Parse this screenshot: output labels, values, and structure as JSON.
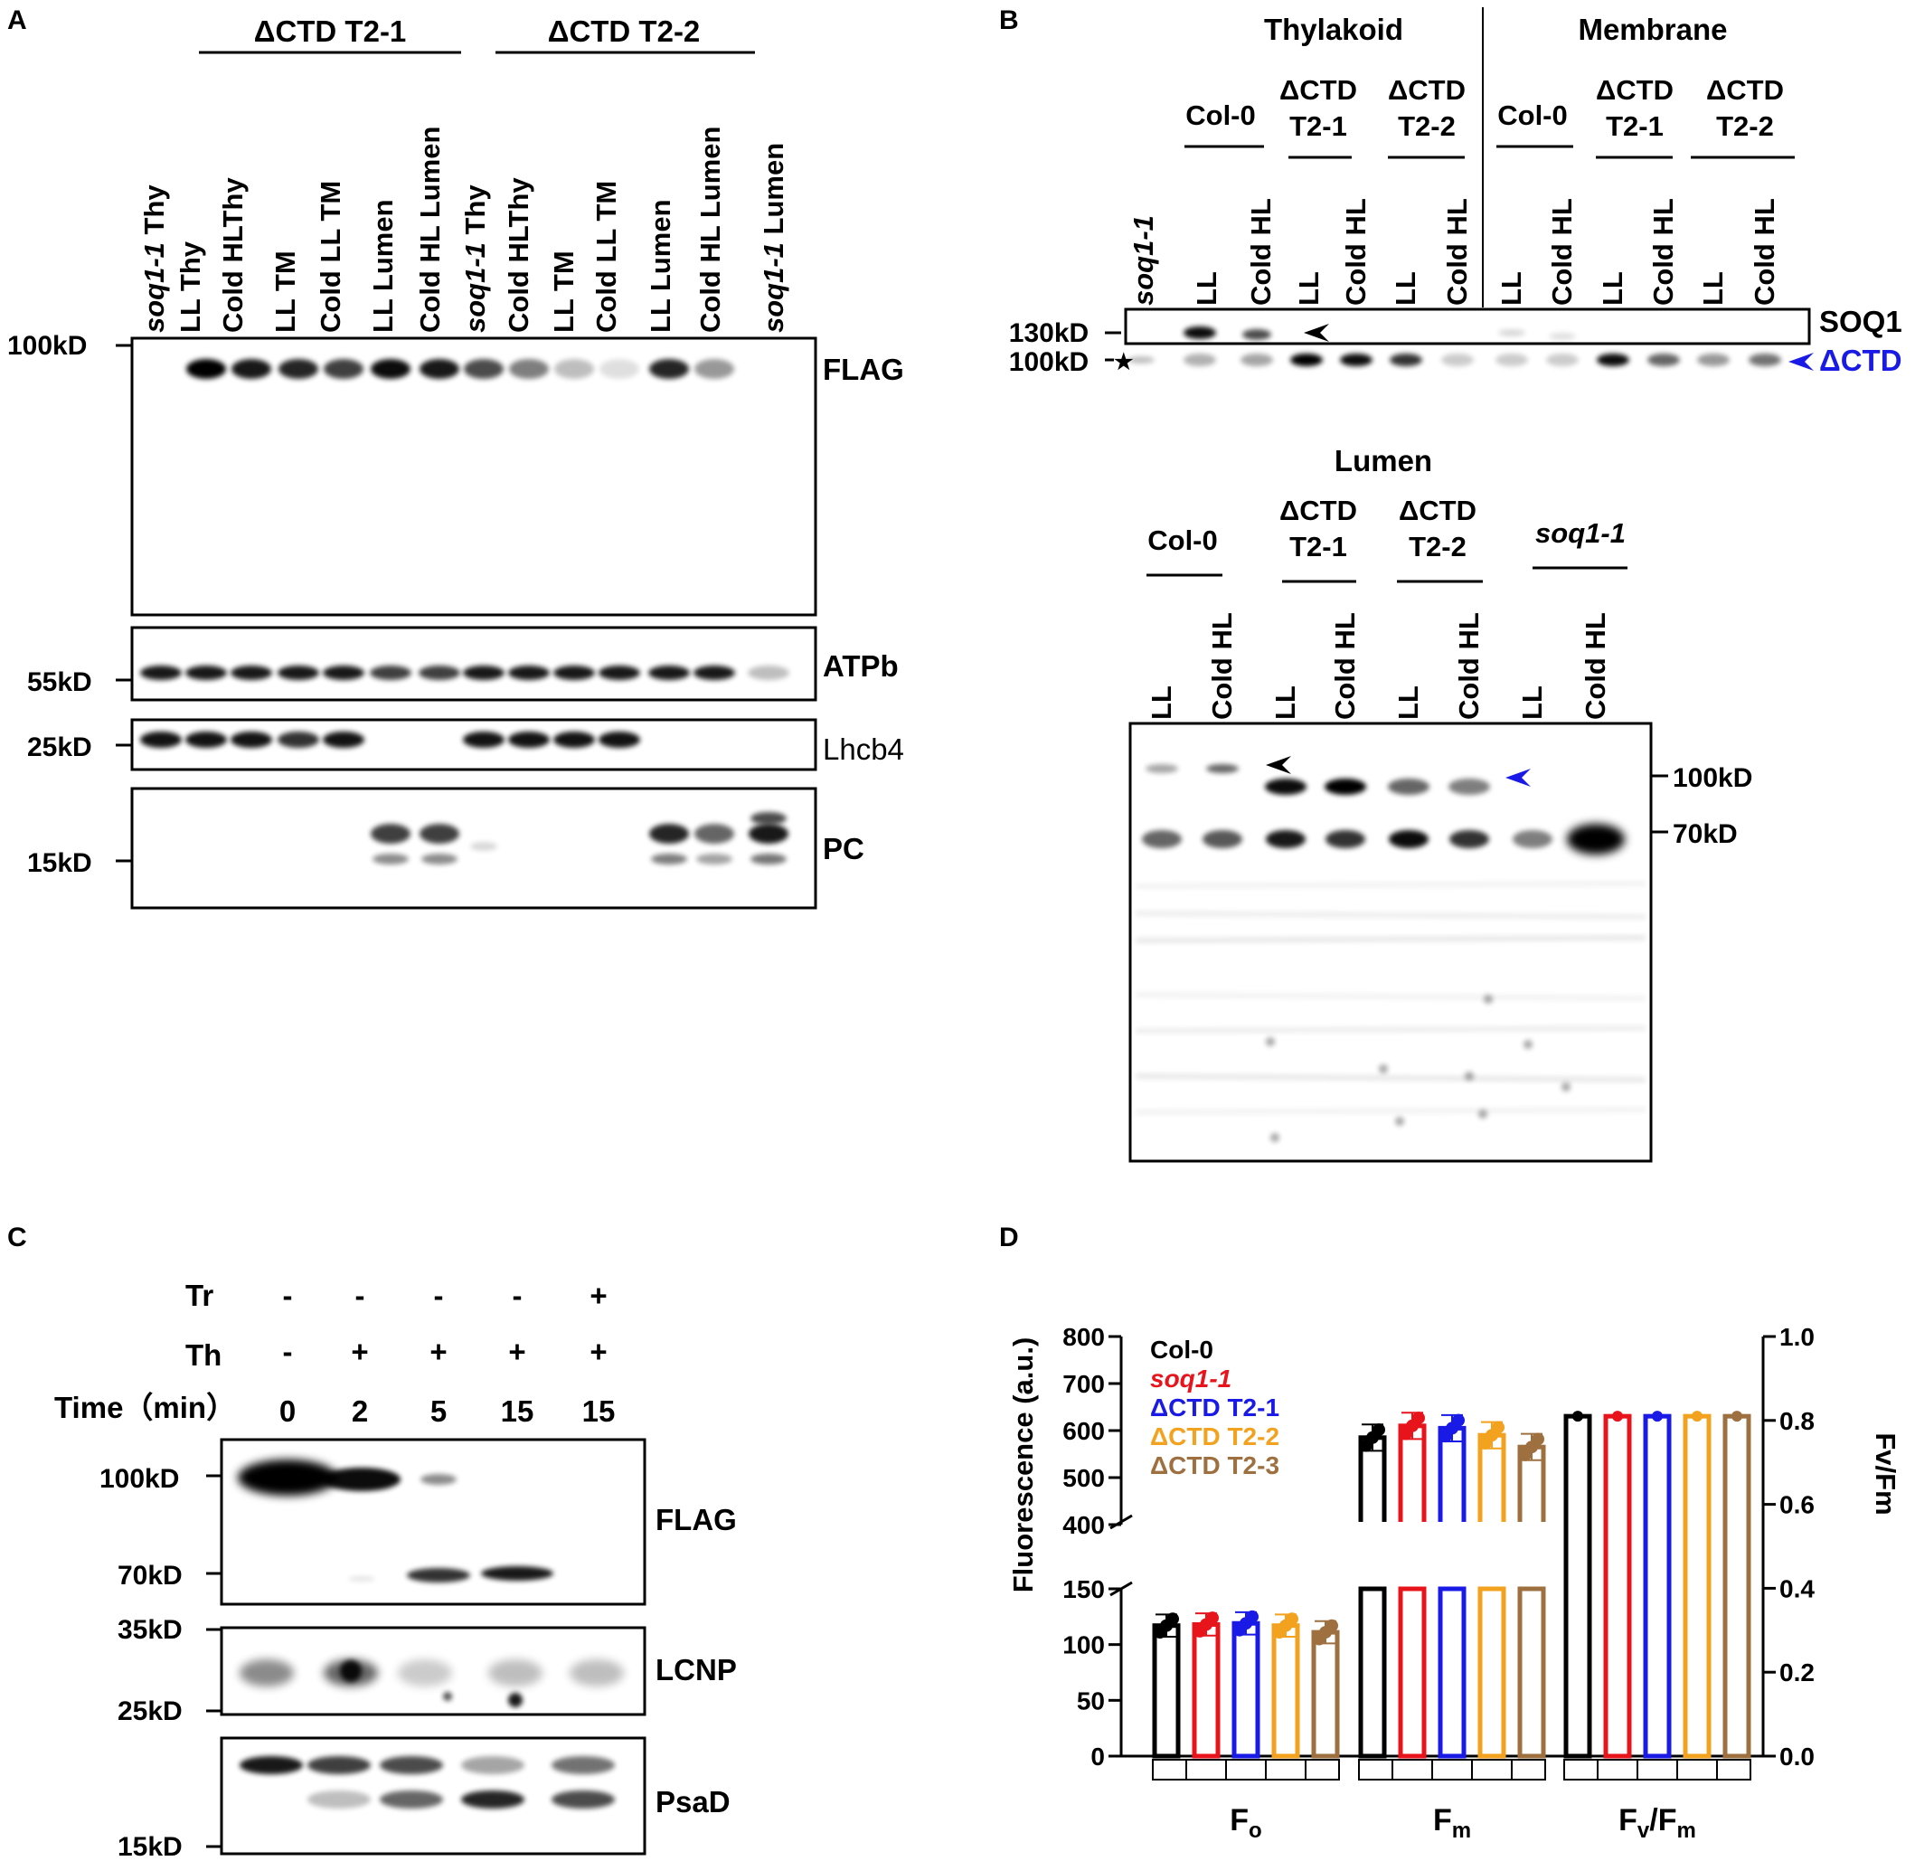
{
  "panel_labels": {
    "a": "A",
    "b": "B",
    "c": "C",
    "d": "D"
  },
  "panel_a": {
    "groups": [
      "ΔCTD T2-1",
      "ΔCTD T2-2"
    ],
    "lanes": [
      {
        "pre": "soq1-1",
        "post": " Thy"
      },
      {
        "pre": "",
        "post": "LL Thy"
      },
      {
        "pre": "",
        "post": "Cold HLThy"
      },
      {
        "pre": "",
        "post": "LL TM"
      },
      {
        "pre": "",
        "post": "Cold LL TM"
      },
      {
        "pre": "",
        "post": "LL Lumen"
      },
      {
        "pre": "",
        "post": "Cold HL Lumen"
      },
      {
        "pre": "soq1-1",
        "post": " Thy"
      },
      {
        "pre": "",
        "post": "Cold HLThy"
      },
      {
        "pre": "",
        "post": "LL TM"
      },
      {
        "pre": "",
        "post": "Cold LL TM"
      },
      {
        "pre": "",
        "post": "LL Lumen"
      },
      {
        "pre": "",
        "post": "Cold HL Lumen"
      },
      {
        "pre": "soq1-1",
        "post": " Lumen"
      }
    ],
    "blots": [
      "FLAG",
      "ATPb",
      "Lhcb4",
      "PC"
    ],
    "markers": [
      "100kD",
      "55kD",
      "25kD",
      "15kD"
    ]
  },
  "panel_b": {
    "top_headers": [
      "Thylakoid",
      "Membrane"
    ],
    "top_groups": [
      "Col-0",
      "ΔCTD",
      "T2-1",
      "ΔCTD",
      "T2-2",
      "Col-0",
      "ΔCTD",
      "T2-1",
      "ΔCTD",
      "T2-2"
    ],
    "top_lanes": [
      "soq1-1",
      "LL",
      "Cold HL",
      "LL",
      "Cold HL",
      "LL",
      "Cold HL",
      "LL",
      "Cold HL",
      "LL",
      "Cold HL",
      "LL",
      "Cold HL"
    ],
    "top_markers": [
      "130kD",
      "100kD"
    ],
    "top_right": [
      "SOQ1",
      "ΔCTD"
    ],
    "bottom_header": "Lumen",
    "bottom_groups": [
      "Col-0",
      "ΔCTD",
      "T2-1",
      "ΔCTD",
      "T2-2",
      "soq1-1"
    ],
    "bottom_lanes": [
      "LL",
      "Cold HL",
      "LL",
      "Cold HL",
      "LL",
      "Cold HL",
      "LL",
      "Cold HL"
    ],
    "bottom_markers": [
      "100kD",
      "70kD"
    ]
  },
  "panel_c": {
    "row_labels": [
      "Tr",
      "Th",
      "Time（min）"
    ],
    "tr": [
      "-",
      "-",
      "-",
      "-",
      "+"
    ],
    "th": [
      "-",
      "+",
      "+",
      "+",
      "+"
    ],
    "time": [
      "0",
      "2",
      "5",
      "15",
      "15"
    ],
    "blots": [
      "FLAG",
      "LCNP",
      "PsaD"
    ],
    "markers": [
      "100kD",
      "70kD",
      "35kD",
      "25kD",
      "15kD"
    ]
  },
  "chart_data": {
    "type": "bar",
    "ylabel": "Fluorescence (a.u.)",
    "y2label": "Fv/Fm",
    "categories": [
      "Fo",
      "Fm",
      "Fv/Fm"
    ],
    "yticks_upper": [
      "800",
      "700",
      "600",
      "500",
      "400"
    ],
    "yticks_lower": [
      "150",
      "100",
      "50",
      "0"
    ],
    "y2ticks": [
      "1.0",
      "0.8",
      "0.6",
      "0.4",
      "0.2",
      "0.0"
    ],
    "axis_break": [
      150,
      400
    ],
    "ylim": [
      0,
      800
    ],
    "y2lim": [
      0,
      1.0
    ],
    "series": [
      {
        "name": "Col-0",
        "color": "#000000",
        "values": [
          117,
          585,
          0.81
        ]
      },
      {
        "name": "soq1-1",
        "color": "#e8141c",
        "values": [
          118,
          610,
          0.81
        ]
      },
      {
        "name": "ΔCTD T2-1",
        "color": "#1a1ae6",
        "values": [
          119,
          605,
          0.81
        ]
      },
      {
        "name": "ΔCTD T2-2",
        "color": "#f2a21e",
        "values": [
          117,
          590,
          0.81
        ]
      },
      {
        "name": "ΔCTD T2-3",
        "color": "#9e7040",
        "values": [
          111,
          565,
          0.81
        ]
      }
    ]
  }
}
